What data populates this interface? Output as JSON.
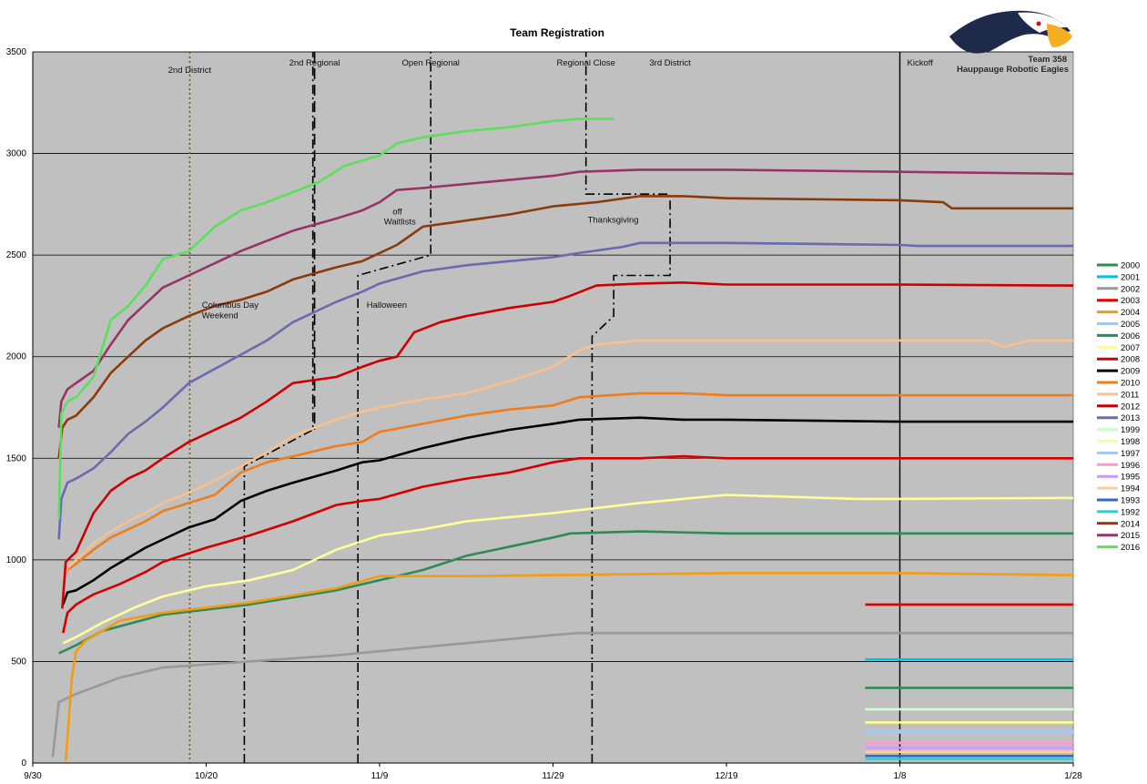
{
  "chart_data": {
    "type": "line",
    "title": "Team Registration",
    "xlabel": "",
    "ylabel": "",
    "ylim": [
      0,
      3500
    ],
    "yticks": [
      0,
      500,
      1000,
      1500,
      2000,
      2500,
      3000,
      3500
    ],
    "xticks": [
      "9/30",
      "10/20",
      "11/9",
      "11/29",
      "12/19",
      "1/8",
      "1/28"
    ],
    "xtick_days": [
      0,
      20,
      40,
      60,
      80,
      100,
      120
    ],
    "grid": true,
    "legend_position": "right",
    "series": [
      {
        "name": "2000",
        "color": "#2e8b57",
        "x": [
          3,
          5,
          8,
          15,
          25,
          35,
          40,
          45,
          50,
          60,
          62,
          70,
          80,
          100,
          120
        ],
        "values": [
          540,
          580,
          650,
          730,
          780,
          850,
          900,
          950,
          1020,
          1110,
          1130,
          1140,
          1130,
          1130,
          1130
        ]
      },
      {
        "name": "2001",
        "color": "#00bfe8",
        "x": [
          96,
          120
        ],
        "values": [
          510,
          510
        ]
      },
      {
        "name": "2002",
        "color": "#999999",
        "x": [
          2.3,
          3,
          5,
          10,
          15,
          25,
          35,
          50,
          60,
          63,
          80,
          100,
          120
        ],
        "values": [
          30,
          300,
          340,
          420,
          470,
          500,
          530,
          590,
          630,
          640,
          640,
          640,
          640
        ]
      },
      {
        "name": "2003",
        "color": "#e00000",
        "x": [
          96,
          120
        ],
        "values": [
          780,
          780
        ]
      },
      {
        "name": "2004",
        "color": "#f39c12",
        "x": [
          3.8,
          4.5,
          5,
          6,
          8,
          10,
          15,
          25,
          35,
          40,
          50,
          60,
          80,
          100,
          120
        ],
        "values": [
          10,
          420,
          550,
          600,
          650,
          700,
          740,
          790,
          860,
          920,
          920,
          925,
          935,
          935,
          925
        ]
      },
      {
        "name": "2005",
        "color": "#a4c8f0",
        "x": [
          96,
          120
        ],
        "values": [
          150,
          150
        ]
      },
      {
        "name": "2006",
        "color": "#2e8b57",
        "x": [
          96,
          120
        ],
        "values": [
          370,
          370
        ]
      },
      {
        "name": "2007",
        "color": "#ffff99",
        "x": [
          3.5,
          5,
          8,
          12,
          15,
          20,
          25,
          30,
          35,
          40,
          45,
          50,
          60,
          70,
          75,
          80,
          95,
          100,
          120
        ],
        "values": [
          590,
          620,
          690,
          770,
          820,
          870,
          900,
          950,
          1050,
          1120,
          1150,
          1190,
          1230,
          1280,
          1300,
          1320,
          1300,
          1300,
          1305
        ]
      },
      {
        "name": "2008",
        "color": "#d40000",
        "x": [
          3.5,
          4,
          5,
          7,
          10,
          13,
          15,
          20,
          25,
          30,
          35,
          38,
          40,
          45,
          50,
          55,
          60,
          63,
          70,
          75,
          80,
          90,
          100,
          120
        ],
        "values": [
          640,
          740,
          780,
          830,
          880,
          940,
          990,
          1060,
          1120,
          1190,
          1270,
          1290,
          1300,
          1360,
          1400,
          1430,
          1480,
          1500,
          1500,
          1510,
          1500,
          1500,
          1500,
          1500
        ]
      },
      {
        "name": "2009",
        "color": "#000000",
        "x": [
          3.5,
          4,
          5,
          7,
          9,
          11,
          13,
          15,
          18,
          21,
          24,
          27,
          30,
          35,
          38,
          40,
          45,
          50,
          55,
          60,
          63,
          70,
          75,
          80,
          100,
          120
        ],
        "values": [
          780,
          840,
          850,
          900,
          960,
          1010,
          1060,
          1100,
          1160,
          1200,
          1290,
          1340,
          1380,
          1440,
          1480,
          1490,
          1550,
          1600,
          1640,
          1670,
          1690,
          1700,
          1690,
          1690,
          1680,
          1680
        ]
      },
      {
        "name": "2010",
        "color": "#f07c1a",
        "x": [
          3.5,
          4,
          5,
          7,
          9,
          11,
          13,
          15,
          18,
          21,
          24,
          27,
          30,
          35,
          38,
          40,
          45,
          50,
          55,
          60,
          63,
          70,
          75,
          80,
          90,
          100,
          120
        ],
        "values": [
          900,
          950,
          980,
          1050,
          1110,
          1150,
          1190,
          1240,
          1280,
          1320,
          1430,
          1480,
          1510,
          1560,
          1580,
          1630,
          1670,
          1710,
          1740,
          1760,
          1800,
          1820,
          1820,
          1810,
          1810,
          1810,
          1810
        ]
      },
      {
        "name": "2011",
        "color": "#f8c090",
        "x": [
          3.5,
          4,
          5,
          7,
          9,
          11,
          13,
          15,
          18,
          21,
          24,
          27,
          30,
          35,
          38,
          40,
          45,
          50,
          55,
          60,
          63,
          65,
          70,
          80,
          90,
          100,
          110,
          112,
          115,
          120
        ],
        "values": [
          900,
          960,
          1000,
          1080,
          1140,
          1190,
          1230,
          1280,
          1330,
          1390,
          1460,
          1530,
          1610,
          1690,
          1730,
          1750,
          1790,
          1820,
          1880,
          1950,
          2030,
          2060,
          2080,
          2080,
          2080,
          2080,
          2080,
          2050,
          2080,
          2080
        ]
      },
      {
        "name": "2012",
        "color": "#cc0000",
        "x": [
          3.4,
          3.8,
          5,
          7,
          9,
          11,
          13,
          15,
          18,
          21,
          24,
          27,
          30,
          35,
          38,
          40,
          42,
          44,
          47,
          50,
          55,
          60,
          62,
          65,
          70,
          75,
          80,
          90,
          100,
          120
        ],
        "values": [
          760,
          990,
          1040,
          1230,
          1340,
          1400,
          1440,
          1500,
          1580,
          1640,
          1700,
          1780,
          1870,
          1900,
          1950,
          1980,
          2000,
          2120,
          2170,
          2200,
          2240,
          2270,
          2300,
          2350,
          2360,
          2365,
          2355,
          2355,
          2355,
          2350
        ]
      },
      {
        "name": "2013",
        "color": "#6a6ab0",
        "x": [
          3,
          3.3,
          4,
          5,
          7,
          9,
          11,
          13,
          15,
          18,
          21,
          24,
          27,
          30,
          35,
          38,
          40,
          45,
          50,
          55,
          60,
          63,
          68,
          70,
          80,
          100,
          102,
          120
        ],
        "values": [
          1100,
          1300,
          1380,
          1400,
          1450,
          1530,
          1620,
          1680,
          1750,
          1870,
          1940,
          2010,
          2080,
          2170,
          2270,
          2320,
          2360,
          2420,
          2450,
          2470,
          2490,
          2510,
          2540,
          2560,
          2560,
          2550,
          2545,
          2545
        ]
      },
      {
        "name": "2014",
        "color": "#8b3a0a",
        "x": [
          3,
          3.4,
          4,
          5,
          7,
          9,
          11,
          13,
          15,
          18,
          21,
          24,
          27,
          30,
          35,
          38,
          40,
          42,
          45,
          50,
          55,
          60,
          65,
          70,
          75,
          80,
          100,
          105,
          106,
          120
        ],
        "values": [
          1500,
          1650,
          1690,
          1710,
          1800,
          1920,
          2000,
          2080,
          2140,
          2200,
          2250,
          2280,
          2320,
          2380,
          2440,
          2470,
          2510,
          2550,
          2640,
          2670,
          2700,
          2740,
          2760,
          2790,
          2790,
          2780,
          2770,
          2760,
          2730,
          2730
        ]
      },
      {
        "name": "2015",
        "color": "#993366",
        "x": [
          3,
          3.3,
          4,
          5,
          7,
          9,
          11,
          13,
          15,
          18,
          21,
          24,
          27,
          30,
          35,
          38,
          40,
          42,
          45,
          50,
          55,
          60,
          63,
          70,
          80,
          100,
          120
        ],
        "values": [
          1650,
          1780,
          1840,
          1870,
          1930,
          2060,
          2180,
          2260,
          2340,
          2400,
          2460,
          2520,
          2570,
          2620,
          2680,
          2720,
          2760,
          2820,
          2830,
          2850,
          2870,
          2890,
          2910,
          2920,
          2920,
          2910,
          2900
        ]
      },
      {
        "name": "2016",
        "color": "#5ae05a",
        "x": [
          3,
          3.3,
          4,
          5,
          7,
          9,
          11,
          13,
          15,
          18,
          21,
          24,
          27,
          30,
          33,
          36,
          40,
          42,
          45,
          50,
          55,
          60,
          63,
          67
        ],
        "values": [
          1200,
          1720,
          1780,
          1800,
          1900,
          2180,
          2250,
          2350,
          2480,
          2520,
          2640,
          2720,
          2760,
          2810,
          2860,
          2940,
          2990,
          3050,
          3080,
          3110,
          3130,
          3160,
          3170,
          3170
        ]
      },
      {
        "name": "1999",
        "color": "#ccffcc",
        "x": [
          96,
          120
        ],
        "values": [
          265,
          265
        ]
      },
      {
        "name": "1998",
        "color": "#ffff88",
        "x": [
          96,
          120
        ],
        "values": [
          200,
          200
        ]
      },
      {
        "name": "1997",
        "color": "#a4c8f0",
        "x": [
          96,
          120
        ],
        "values": [
          160,
          160
        ]
      },
      {
        "name": "1996",
        "color": "#ff99cc",
        "x": [
          96,
          120
        ],
        "values": [
          100,
          100
        ]
      },
      {
        "name": "1995",
        "color": "#cc99ff",
        "x": [
          96,
          120
        ],
        "values": [
          75,
          75
        ]
      },
      {
        "name": "1994",
        "color": "#ffcc99",
        "x": [
          96,
          120
        ],
        "values": [
          55,
          55
        ]
      },
      {
        "name": "1993",
        "color": "#3366cc",
        "x": [
          96,
          120
        ],
        "values": [
          35,
          35
        ]
      },
      {
        "name": "1992",
        "color": "#33cccc",
        "x": [
          96,
          120
        ],
        "values": [
          20,
          20
        ]
      }
    ],
    "legend_entries": [
      {
        "name": "2000",
        "color": "#2e8b57"
      },
      {
        "name": "2001",
        "color": "#00bfe8"
      },
      {
        "name": "2002",
        "color": "#999999"
      },
      {
        "name": "2003",
        "color": "#e00000"
      },
      {
        "name": "2004",
        "color": "#f39c12"
      },
      {
        "name": "2005",
        "color": "#a4c8f0"
      },
      {
        "name": "2006",
        "color": "#2e8b57"
      },
      {
        "name": "2007",
        "color": "#ffff99"
      },
      {
        "name": "2008",
        "color": "#d40000"
      },
      {
        "name": "2009",
        "color": "#000000"
      },
      {
        "name": "2010",
        "color": "#f07c1a"
      },
      {
        "name": "2011",
        "color": "#f8c090"
      },
      {
        "name": "2012",
        "color": "#cc0000"
      },
      {
        "name": "2013",
        "color": "#6a6ab0"
      },
      {
        "name": "1999",
        "color": "#ccffcc"
      },
      {
        "name": "1998",
        "color": "#ffff88"
      },
      {
        "name": "1997",
        "color": "#a4c8f0"
      },
      {
        "name": "1996",
        "color": "#ff99cc"
      },
      {
        "name": "1995",
        "color": "#cc99ff"
      },
      {
        "name": "1994",
        "color": "#ffcc99"
      },
      {
        "name": "1993",
        "color": "#3366cc"
      },
      {
        "name": "1992",
        "color": "#33cccc"
      },
      {
        "name": "2014",
        "color": "#8b3a0a"
      },
      {
        "name": "2015",
        "color": "#993366"
      },
      {
        "name": "2016",
        "color": "#5ae05a"
      }
    ],
    "event_markers": [
      {
        "label": "2nd District",
        "x": 18.1,
        "style": "dotted"
      },
      {
        "label": "2nd Regional",
        "x": 32.5,
        "style": "dash"
      },
      {
        "label": "Open Regional",
        "x": 45.9,
        "style": "dashdot"
      },
      {
        "label": "Regional Close",
        "x": 63.8,
        "style": "dashdot"
      },
      {
        "label": "3rd District",
        "x": 73.5,
        "style": "dashdot"
      },
      {
        "label": "Kickoff",
        "x": 100,
        "style": "solid"
      }
    ],
    "event_paths": [
      {
        "style": "dashdot",
        "x": [
          24.4,
          24.4,
          32.3,
          32.3
        ],
        "y": [
          0,
          1460,
          1640,
          3500
        ]
      },
      {
        "style": "dashdot",
        "x": [
          37.5,
          37.5,
          45.9,
          45.9
        ],
        "y": [
          0,
          2400,
          2500,
          3500
        ]
      },
      {
        "style": "dashdot",
        "x": [
          64.5,
          64.5,
          67.0,
          67.0,
          73.5,
          73.5,
          63.8,
          63.8
        ],
        "y": [
          0,
          2100,
          2200,
          2400,
          2400,
          2800,
          2800,
          3500
        ]
      }
    ],
    "annotations": [
      {
        "text": "Columbus Day",
        "x": 19.5,
        "y": 2240
      },
      {
        "text": "Weekend",
        "x": 19.5,
        "y": 2190
      },
      {
        "text": "Halloween",
        "x": 38.5,
        "y": 2240
      },
      {
        "text": "off",
        "x": 41.5,
        "y": 2700
      },
      {
        "text": "Waitlists",
        "x": 40.5,
        "y": 2650
      },
      {
        "text": "Thanksgiving",
        "x": 64.0,
        "y": 2660
      }
    ],
    "logo_text": [
      "Team 358",
      "Hauppauge Robotic Eagles"
    ]
  }
}
